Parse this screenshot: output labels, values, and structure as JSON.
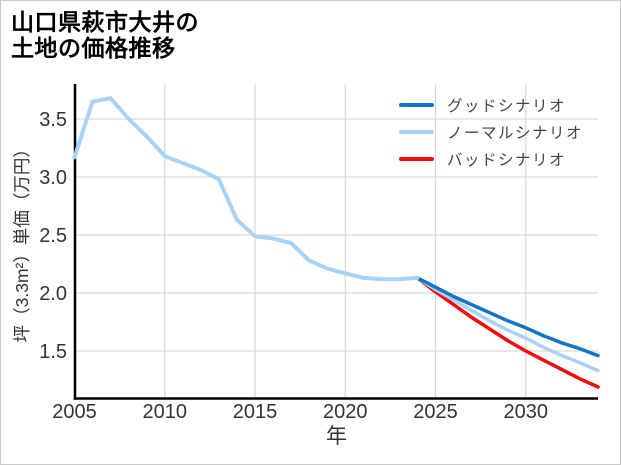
{
  "title": {
    "line1": "山口県萩市大井の",
    "line2": "土地の価格推移"
  },
  "legend": {
    "items": [
      {
        "label": "グッドシナリオ",
        "color": "#1474c4"
      },
      {
        "label": "ノーマルシナリオ",
        "color": "#a9d2f5"
      },
      {
        "label": "バッドシナリオ",
        "color": "#f40b0b"
      }
    ]
  },
  "chart_data": {
    "type": "line",
    "title": "山口県萩市大井の土地の価格推移",
    "xlabel": "年",
    "ylabel": "坪（3.3m²）単価（万円）",
    "x_ticks": [
      2005,
      2010,
      2015,
      2020,
      2025,
      2030
    ],
    "x_gridlines": [
      2010,
      2015,
      2020,
      2025,
      2030
    ],
    "y_ticks": [
      1.5,
      2.0,
      2.5,
      3.0,
      3.5
    ],
    "xlim": [
      2005,
      2034
    ],
    "ylim": [
      1.09,
      3.78
    ],
    "grid": true,
    "legend_position": "top-right",
    "axis_color": "#000000",
    "grid_color": "#d9d9d9",
    "tick_label_color": "#333333",
    "series": [
      {
        "name": "バッドシナリオ",
        "id": "bad",
        "in_legend": true,
        "color": "#f40b0b",
        "x": [
          2024,
          2025,
          2026,
          2027,
          2028,
          2029,
          2030,
          2031,
          2032,
          2033,
          2034
        ],
        "y": [
          2.13,
          2.01,
          1.9,
          1.79,
          1.69,
          1.59,
          1.5,
          1.42,
          1.34,
          1.26,
          1.19
        ]
      },
      {
        "name": "ノーマルシナリオ",
        "id": "normal",
        "in_legend": true,
        "color": "#a9d2f5",
        "x": [
          2024,
          2025,
          2026,
          2027,
          2028,
          2029,
          2030,
          2031,
          2032,
          2033,
          2034
        ],
        "y": [
          2.13,
          2.03,
          1.94,
          1.85,
          1.76,
          1.68,
          1.61,
          1.53,
          1.46,
          1.4,
          1.33
        ]
      },
      {
        "name": "グッドシナリオ",
        "id": "good",
        "in_legend": true,
        "color": "#1474c4",
        "x": [
          2024,
          2025,
          2026,
          2027,
          2028,
          2029,
          2030,
          2031,
          2032,
          2033,
          2034
        ],
        "y": [
          2.13,
          2.05,
          1.97,
          1.9,
          1.83,
          1.76,
          1.7,
          1.63,
          1.57,
          1.52,
          1.46
        ]
      },
      {
        "name": "",
        "id": "historical",
        "in_legend": false,
        "color": "#a9d2f5",
        "x": [
          2005,
          2006,
          2007,
          2008,
          2009,
          2010,
          2011,
          2012,
          2013,
          2014,
          2015,
          2016,
          2017,
          2018,
          2019,
          2020,
          2021,
          2022,
          2023,
          2024
        ],
        "y": [
          3.17,
          3.65,
          3.68,
          3.5,
          3.35,
          3.18,
          3.12,
          3.06,
          2.98,
          2.63,
          2.49,
          2.47,
          2.43,
          2.28,
          2.21,
          2.17,
          2.13,
          2.12,
          2.12,
          2.13
        ]
      }
    ]
  }
}
